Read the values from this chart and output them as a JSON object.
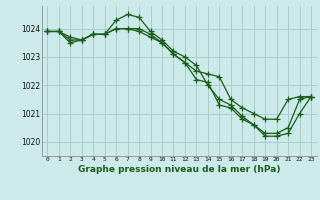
{
  "title": "Graphe pression niveau de la mer (hPa)",
  "bg_color": "#cceaea",
  "grid_color": "#aacccc",
  "line_color": "#1a5c1a",
  "marker_color": "#1a5c1a",
  "xlim": [
    -0.5,
    23.5
  ],
  "ylim": [
    1019.5,
    1024.8
  ],
  "yticks": [
    1020,
    1021,
    1022,
    1023,
    1024
  ],
  "xticks": [
    0,
    1,
    2,
    3,
    4,
    5,
    6,
    7,
    8,
    9,
    10,
    11,
    12,
    13,
    14,
    15,
    16,
    17,
    18,
    19,
    20,
    21,
    22,
    23
  ],
  "series1": [
    1023.9,
    1023.9,
    1023.7,
    1023.6,
    1023.8,
    1023.8,
    1024.3,
    1024.5,
    1024.4,
    1023.9,
    1023.6,
    1023.2,
    1023.0,
    1022.7,
    1022.0,
    1021.5,
    1021.3,
    1020.9,
    1020.6,
    1020.3,
    1020.3,
    1020.5,
    1021.5,
    1021.6
  ],
  "series2": [
    1023.9,
    1023.9,
    1023.6,
    1023.6,
    1023.8,
    1023.8,
    1024.0,
    1024.0,
    1024.0,
    1023.8,
    1023.5,
    1023.1,
    1022.8,
    1022.5,
    1022.4,
    1022.3,
    1021.5,
    1021.2,
    1021.0,
    1020.8,
    1020.8,
    1021.5,
    1021.6,
    1021.6
  ],
  "series3": [
    1023.9,
    1023.9,
    1023.5,
    1023.6,
    1023.8,
    1023.8,
    1024.0,
    1024.0,
    1023.9,
    1023.7,
    1023.5,
    1023.1,
    1022.8,
    1022.2,
    1022.1,
    1021.3,
    1021.2,
    1020.8,
    1020.6,
    1020.2,
    1020.2,
    1020.3,
    1021.0,
    1021.6
  ],
  "ylabel_fontsize": 6.0,
  "xlabel_fontsize": 6.5,
  "xtick_fontsize": 4.5,
  "ytick_fontsize": 5.5,
  "linewidth": 0.9,
  "markersize": 4
}
